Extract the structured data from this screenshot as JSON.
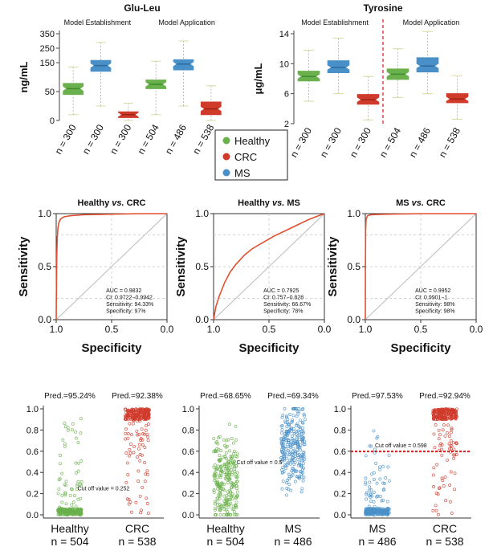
{
  "figure": {
    "legend": {
      "entries": [
        {
          "label": "Healthy",
          "color": "#6ab04c"
        },
        {
          "label": "CRC",
          "color": "#d03a2a"
        },
        {
          "label": "MS",
          "color": "#4a90c8"
        }
      ]
    },
    "colors": {
      "healthy": "#6ab04c",
      "crc": "#d03a2a",
      "ms": "#4a90c8",
      "roc_line": "#e05030",
      "cutoff_line": "#d81a1a"
    }
  },
  "chart_data": [
    {
      "id": "boxA",
      "type": "box",
      "title": "Glu-Leu",
      "ylabel": "ng/mL",
      "ylim": [
        0,
        350
      ],
      "yticks": [
        0,
        50,
        150,
        250,
        350
      ],
      "ycuts": [
        [
          0,
          50
        ],
        [
          50,
          150
        ],
        [
          150,
          350
        ]
      ],
      "group_labels": [
        "Model Establishment",
        "Model Application"
      ],
      "boxes": [
        {
          "n": "n = 300",
          "group": "healthy",
          "min": 10,
          "q1": 45,
          "median": 60,
          "q3": 78,
          "max": 135
        },
        {
          "n": "n = 300",
          "group": "ms",
          "min": 25,
          "q1": 120,
          "median": 140,
          "q3": 165,
          "max": 290
        },
        {
          "n": "n = 300",
          "group": "crc",
          "min": 0,
          "q1": 5,
          "median": 10,
          "q3": 15,
          "max": 30
        },
        {
          "n": "n = 504",
          "group": "healthy",
          "min": 10,
          "q1": 60,
          "median": 75,
          "q3": 90,
          "max": 160
        },
        {
          "n": "n = 486",
          "group": "ms",
          "min": 25,
          "q1": 125,
          "median": 145,
          "q3": 170,
          "max": 300
        },
        {
          "n": "n = 538",
          "group": "crc",
          "min": 0,
          "q1": 10,
          "median": 20,
          "q3": 32,
          "max": 70
        }
      ]
    },
    {
      "id": "boxB",
      "type": "box",
      "title": "Tyrosine",
      "ylabel": "μg/mL",
      "ylim": [
        2,
        14
      ],
      "yticks": [
        2,
        6,
        10,
        14
      ],
      "group_labels": [
        "Model Establishment",
        "Model Application"
      ],
      "divider": true,
      "boxes": [
        {
          "n": "n = 300",
          "group": "healthy",
          "min": 5,
          "q1": 7.7,
          "median": 8.3,
          "q3": 9.0,
          "max": 11.8
        },
        {
          "n": "n = 300",
          "group": "ms",
          "min": 6,
          "q1": 8.8,
          "median": 9.5,
          "q3": 10.4,
          "max": 13.4
        },
        {
          "n": "n = 300",
          "group": "crc",
          "min": 2.5,
          "q1": 4.6,
          "median": 5.2,
          "q3": 5.9,
          "max": 8.3
        },
        {
          "n": "n = 504",
          "group": "healthy",
          "min": 5.5,
          "q1": 7.9,
          "median": 8.6,
          "q3": 9.3,
          "max": 12.0
        },
        {
          "n": "n = 486",
          "group": "ms",
          "min": 6,
          "q1": 8.9,
          "median": 9.7,
          "q3": 10.8,
          "max": 14.3
        },
        {
          "n": "n = 538",
          "group": "crc",
          "min": 2.6,
          "q1": 4.8,
          "median": 5.3,
          "q3": 6.0,
          "max": 8.4
        }
      ]
    },
    {
      "id": "roc1",
      "type": "line",
      "title_a": "Healthy",
      "title_b": "CRC",
      "xlabel": "Specificity",
      "ylabel": "Sensitivity",
      "xticks": [
        "1.0",
        "0.5",
        "0.0"
      ],
      "yticks": [
        "0.0",
        "0.5",
        "1.0"
      ],
      "stats": [
        "AUC = 0.9832",
        "CI: 0.9722−0.9942",
        "Sensitivity: 94.33%",
        "Specificity: 97%"
      ],
      "curve": [
        [
          1.0,
          0.0
        ],
        [
          0.998,
          0.3
        ],
        [
          0.995,
          0.6
        ],
        [
          0.99,
          0.78
        ],
        [
          0.985,
          0.86
        ],
        [
          0.975,
          0.92
        ],
        [
          0.96,
          0.95
        ],
        [
          0.93,
          0.97
        ],
        [
          0.87,
          0.98
        ],
        [
          0.75,
          0.99
        ],
        [
          0.5,
          0.995
        ],
        [
          0.25,
          1.0
        ],
        [
          0.0,
          1.0
        ]
      ]
    },
    {
      "id": "roc2",
      "type": "line",
      "title_a": "Healthy",
      "title_b": "MS",
      "xlabel": "Specificity",
      "ylabel": "Sensitivity",
      "xticks": [
        "1.0",
        "0.5",
        "0.0"
      ],
      "yticks": [
        "0.0",
        "0.5",
        "1.0"
      ],
      "stats": [
        "AUC = 0.7925",
        "CI: 0.757−0.828",
        "Sensitivity: 66.67%",
        "Specificity: 78%"
      ],
      "curve": [
        [
          1.0,
          0.0
        ],
        [
          0.98,
          0.12
        ],
        [
          0.95,
          0.22
        ],
        [
          0.9,
          0.35
        ],
        [
          0.85,
          0.45
        ],
        [
          0.8,
          0.52
        ],
        [
          0.72,
          0.61
        ],
        [
          0.65,
          0.67
        ],
        [
          0.55,
          0.73
        ],
        [
          0.45,
          0.79
        ],
        [
          0.35,
          0.84
        ],
        [
          0.25,
          0.89
        ],
        [
          0.15,
          0.94
        ],
        [
          0.08,
          0.97
        ],
        [
          0.0,
          1.0
        ]
      ]
    },
    {
      "id": "roc3",
      "type": "line",
      "title_a": "MS",
      "title_b": "CRC",
      "xlabel": "Specificity",
      "ylabel": "Sensitivity",
      "xticks": [
        "1.0",
        "0.5",
        "0.0"
      ],
      "yticks": [
        "0.0",
        "0.5",
        "1.0"
      ],
      "stats": [
        "AUC = 0.9952",
        "CI: 0.9901−1",
        "Sensitivity: 98%",
        "Specificity: 98%"
      ],
      "curve": [
        [
          1.0,
          0.0
        ],
        [
          0.999,
          0.5
        ],
        [
          0.997,
          0.85
        ],
        [
          0.993,
          0.95
        ],
        [
          0.98,
          0.98
        ],
        [
          0.95,
          0.99
        ],
        [
          0.8,
          0.995
        ],
        [
          0.5,
          1.0
        ],
        [
          0.0,
          1.0
        ]
      ]
    },
    {
      "id": "scat1",
      "type": "scatter",
      "ylim": [
        0,
        1
      ],
      "yticks": [
        "0.0",
        "0.2",
        "0.4",
        "0.6",
        "0.8",
        "1.0"
      ],
      "categories": [
        {
          "name": "Healthy",
          "n": "n = 504",
          "pred": "Pred.=95.24%",
          "group": "healthy",
          "dist": "low"
        },
        {
          "name": "CRC",
          "n": "n = 538",
          "pred": "Pred.=92.38%",
          "group": "crc",
          "dist": "high"
        }
      ],
      "cutoff": 0.252,
      "cutoff_label": "Cut off value = 0.252",
      "cutoff_line": false
    },
    {
      "id": "scat2",
      "type": "scatter",
      "ylim": [
        0,
        1
      ],
      "yticks": [
        "0.0",
        "0.2",
        "0.4",
        "0.6",
        "0.8",
        "1.0"
      ],
      "categories": [
        {
          "name": "Healthy",
          "n": "n = 504",
          "pred": "Pred.=68.65%",
          "group": "healthy",
          "dist": "midlow"
        },
        {
          "name": "MS",
          "n": "n = 486",
          "pred": "Pred.=69.34%",
          "group": "ms",
          "dist": "midhigh"
        }
      ],
      "cutoff": 0.5,
      "cutoff_label": "Cut off value = 0.5",
      "cutoff_line": false
    },
    {
      "id": "scat3",
      "type": "scatter",
      "ylim": [
        0,
        1
      ],
      "yticks": [
        "0.0",
        "0.2",
        "0.4",
        "0.6",
        "0.8",
        "1.0"
      ],
      "categories": [
        {
          "name": "MS",
          "n": "n = 486",
          "pred": "Pred.=97.53%",
          "group": "ms",
          "dist": "low"
        },
        {
          "name": "CRC",
          "n": "n = 538",
          "pred": "Pred.=92.94%",
          "group": "crc",
          "dist": "high"
        }
      ],
      "cutoff": 0.598,
      "cutoff_label": "Cut off value = 0.598",
      "cutoff_line": true
    }
  ]
}
